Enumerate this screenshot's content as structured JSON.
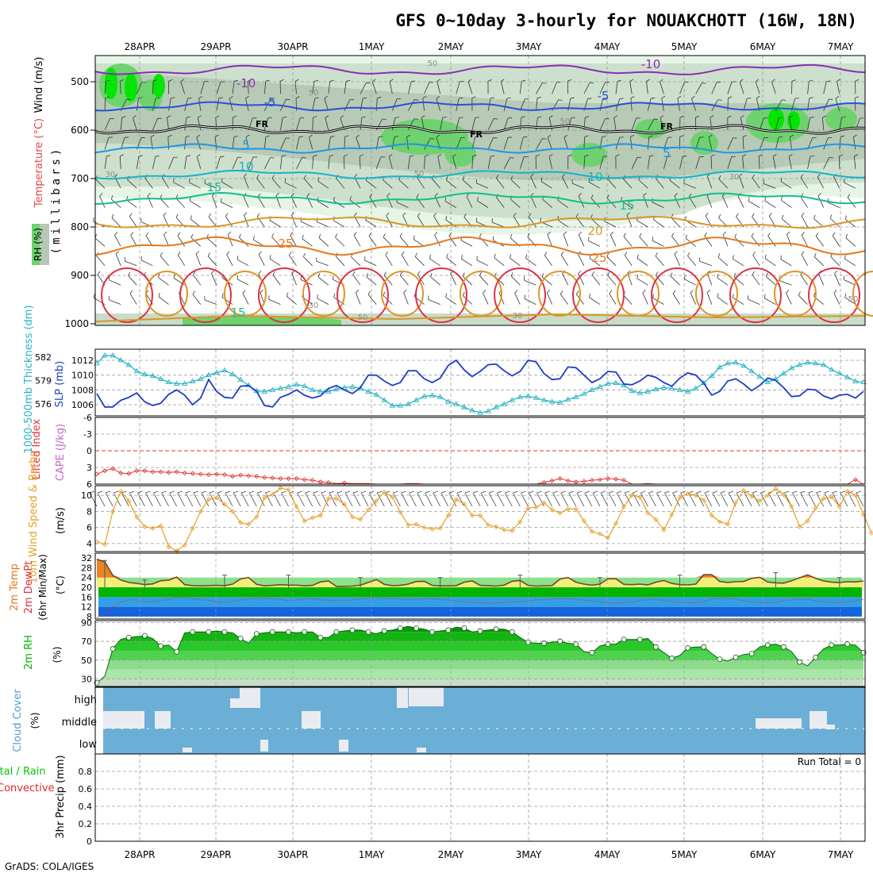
{
  "title": "GFS 0~10day 3-hourly for NOUAKCHOTT (16W, 18N)",
  "credit": "GrADS: COLA/IGES",
  "dates": [
    "28APR",
    "29APR",
    "30APR",
    "1MAY",
    "2MAY",
    "3MAY",
    "4MAY",
    "5MAY",
    "6MAY",
    "7MAY"
  ],
  "colors": {
    "rh_light": "#e6f5e6",
    "rh_mid": "#c8dcc8",
    "rh_gray": "#b4c8b4",
    "rh_green": "#6ed26e",
    "rh_bright": "#00e600",
    "temp_neg10": "#8c2db4",
    "temp_neg5": "#2850dc",
    "temp_freeze": "#000000",
    "temp_5": "#1e96e6",
    "temp_10": "#14b4c8",
    "temp_15": "#14be8c",
    "temp_20": "#dc9628",
    "temp_25": "#e6781e",
    "temp_30": "#dc3246",
    "slp": "#1e3cc8",
    "thick": "#28b4c8",
    "lifted": "#e63232",
    "cape": "#c864c8",
    "wind10": "#e6a028",
    "cloud": "#6baed6",
    "precip_total": "#00c800",
    "precip_conv": "#e62828"
  },
  "panel_upper": {
    "ylabel": "(millibars)",
    "legend_wind": "Wind (m/s)",
    "legend_temp": "Temperature (°C)",
    "legend_rh": "RH (%)",
    "yticks": [
      "500",
      "600",
      "700",
      "800",
      "900",
      "1000"
    ],
    "temp_labels": [
      {
        "text": "-10",
        "level": "-10"
      },
      {
        "text": "-10",
        "level": "-10"
      },
      {
        "text": "-5",
        "level": "-5"
      },
      {
        "text": "-5",
        "level": "-5"
      },
      {
        "text": "FR",
        "level": "0"
      },
      {
        "text": "FR",
        "level": "0"
      },
      {
        "text": "FR",
        "level": "0"
      },
      {
        "text": "5",
        "level": "5"
      },
      {
        "text": "5",
        "level": "5"
      },
      {
        "text": "10",
        "level": "10"
      },
      {
        "text": "10",
        "level": "10"
      },
      {
        "text": "15",
        "level": "15"
      },
      {
        "text": "15",
        "level": "15"
      },
      {
        "text": "20",
        "level": "20"
      },
      {
        "text": "25",
        "level": "25"
      },
      {
        "text": "25",
        "level": "25"
      },
      {
        "text": "15",
        "level": "15"
      }
    ],
    "rh_labels": [
      "50",
      "50",
      "50",
      "50",
      "30",
      "30",
      "30",
      "50",
      "30",
      "50"
    ]
  },
  "panel_slp": {
    "label_thick": "1000-500mb Thickness (dm)",
    "label_slp": "SLP (mb)",
    "yticks_left": [
      "582",
      "579",
      "576"
    ],
    "yticks_right": [
      "1012",
      "1010",
      "1008",
      "1006"
    ]
  },
  "panel_li": {
    "label_li": "Lifted Index",
    "label_cape": "CAPE (J/kg)",
    "yticks": [
      "-6",
      "-3",
      "0",
      "3",
      "6"
    ]
  },
  "panel_wind": {
    "label": "10m Wind Speed & Barbs",
    "unit": "(m/s)",
    "yticks": [
      "10",
      "8",
      "6",
      "4"
    ]
  },
  "panel_temp": {
    "label_a": "2m Temp",
    "label_b": "2m DewPt",
    "label_c": "(6hr Min/Max)",
    "unit": "(°C)",
    "yticks": [
      "32",
      "28",
      "24",
      "20",
      "16",
      "12",
      "8"
    ]
  },
  "panel_rh": {
    "label": "2m RH",
    "unit": "(%)",
    "yticks": [
      "90",
      "70",
      "50",
      "30"
    ]
  },
  "panel_cloud": {
    "label": "Cloud Cover",
    "unit": "(%)",
    "levels": [
      "high",
      "middle",
      "low"
    ]
  },
  "panel_precip": {
    "label_a": "Total / Rain",
    "label_b": "Convective",
    "label_c": "3hr Precip (mm)",
    "run_total": "Run Total = 0",
    "yticks": [
      "0.8",
      "0.6",
      "0.4",
      "0.2",
      "0"
    ]
  },
  "chart_data": [
    {
      "type": "line",
      "title": "1000-500mb Thickness (dm) / SLP (mb)",
      "series": [
        {
          "name": "SLP (mb)",
          "ylim": [
            1004.5,
            1013.5
          ],
          "values": [
            1007.5,
            1005.7,
            1005.7,
            1006.6,
            1007.0,
            1007.6,
            1006.4,
            1005.9,
            1006.2,
            1007.4,
            1008.0,
            1007.3,
            1006.0,
            1006.9,
            1009.4,
            1007.8,
            1007.0,
            1006.9,
            1008.5,
            1008.6,
            1007.8,
            1005.9,
            1005.7,
            1007.0,
            1007.4,
            1008.0,
            1007.3,
            1006.9,
            1007.2,
            1008.2,
            1008.6,
            1008.0,
            1007.5,
            1008.3,
            1010.0,
            1010.0,
            1009.2,
            1008.6,
            1009.0,
            1010.6,
            1010.6,
            1009.5,
            1009.0,
            1009.6,
            1011.3,
            1012.0,
            1010.7,
            1009.8,
            1010.5,
            1011.4,
            1011.5,
            1010.6,
            1009.9,
            1010.5,
            1012.0,
            1011.8,
            1010.2,
            1009.4,
            1009.5,
            1011.1,
            1011.0,
            1010.0,
            1009.0,
            1009.5,
            1010.5,
            1010.4,
            1008.8,
            1008.7,
            1009.2,
            1010.0,
            1009.7,
            1009.0,
            1008.5,
            1009.6,
            1010.3,
            1010.0,
            1008.9,
            1007.3,
            1007.8,
            1009.2,
            1009.5,
            1008.8,
            1007.9,
            1008.6,
            1009.6,
            1009.3,
            1008.3,
            1007.1,
            1007.2,
            1008.1,
            1008.0,
            1007.2,
            1006.8,
            1007.3,
            1007.4,
            1006.9,
            1007.8
          ]
        },
        {
          "name": "1000-500mb Thickness (dm)",
          "ylim": [
            574.5,
            583.0
          ],
          "values": [
            581.2,
            582.2,
            582.2,
            581.6,
            581.0,
            580.2,
            579.8,
            579.6,
            579.2,
            578.8,
            578.6,
            578.6,
            578.9,
            579.2,
            579.7,
            580.0,
            580.3,
            579.8,
            579.1,
            578.4,
            577.7,
            577.6,
            577.8,
            578.0,
            578.2,
            578.5,
            578.3,
            577.8,
            577.6,
            577.6,
            577.9,
            578.1,
            578.2,
            578.0,
            577.6,
            577.2,
            576.5,
            575.8,
            575.8,
            576.0,
            576.5,
            577.0,
            577.1,
            576.9,
            576.3,
            576.0,
            575.6,
            575.2,
            574.9,
            575.1,
            575.6,
            576.0,
            576.5,
            576.9,
            577.0,
            576.8,
            576.5,
            576.3,
            576.2,
            576.6,
            576.9,
            577.3,
            577.8,
            578.2,
            578.6,
            578.7,
            578.4,
            577.7,
            577.4,
            577.6,
            577.9,
            578.1,
            578.0,
            577.8,
            577.6,
            578.0,
            578.7,
            579.6,
            580.7,
            581.2,
            581.3,
            580.9,
            580.2,
            579.5,
            578.8,
            579.2,
            579.9,
            580.6,
            581.0,
            581.3,
            581.2,
            581.0,
            580.4,
            579.9,
            579.4,
            578.9,
            578.8
          ]
        }
      ]
    },
    {
      "type": "line",
      "title": "Lifted Index / CAPE (J/kg)",
      "series": [
        {
          "name": "Lifted Index",
          "ylim": [
            -6,
            6
          ],
          "values": [
            4.2,
            3.6,
            3.2,
            4.0,
            4.1,
            3.6,
            3.6,
            3.8,
            3.8,
            3.9,
            3.8,
            4.0,
            4.1,
            4.2,
            4.3,
            4.2,
            4.3,
            4.6,
            4.4,
            4.5,
            4.6,
            4.8,
            4.9,
            5.0,
            5.0,
            5.0,
            5.2,
            5.3,
            5.6,
            5.7,
            5.9,
            5.8,
            5.9,
            5.9,
            5.9,
            6.0,
            6.0,
            6.0,
            6.0,
            5.9,
            5.9,
            6.0,
            6.0,
            6.0,
            6.0,
            6.0,
            6.0,
            6.0,
            6.0,
            6.0,
            6.0,
            6.0,
            6.0,
            6.0,
            6.0,
            6.0,
            5.7,
            5.4,
            5.0,
            5.4,
            5.6,
            5.5,
            5.3,
            5.2,
            5.0,
            5.1,
            5.3,
            6.0,
            6.0,
            5.9,
            6.0,
            6.0,
            6.0,
            6.0,
            6.0,
            6.0,
            6.0,
            6.0,
            6.0,
            6.0,
            6.0,
            6.0,
            6.0,
            6.0,
            6.0,
            6.0,
            6.0,
            6.0,
            6.0,
            6.0,
            6.0,
            6.0,
            6.0,
            6.0,
            6.0,
            5.2,
            6.0
          ]
        }
      ]
    },
    {
      "type": "line",
      "title": "10m Wind Speed & Barbs (m/s)",
      "series": [
        {
          "name": "10m Wind Speed",
          "ylim": [
            3,
            11.2
          ],
          "values": [
            4.2,
            3.9,
            8.0,
            10.5,
            9.3,
            7.3,
            6.1,
            5.9,
            6.2,
            3.6,
            3.1,
            3.8,
            5.9,
            8.0,
            9.5,
            9.7,
            8.9,
            8.0,
            6.6,
            6.4,
            7.3,
            9.7,
            10.1,
            10.9,
            10.7,
            8.6,
            6.8,
            7.2,
            7.5,
            9.6,
            9.6,
            8.9,
            7.3,
            7.0,
            8.2,
            9.3,
            10.4,
            9.8,
            7.9,
            6.3,
            6.4,
            6.0,
            5.8,
            5.9,
            7.5,
            9.5,
            8.9,
            7.5,
            7.5,
            6.3,
            6.1,
            5.7,
            5.6,
            6.7,
            8.4,
            8.5,
            9.1,
            8.2,
            7.8,
            8.3,
            8.3,
            6.8,
            5.5,
            5.2,
            4.7,
            6.5,
            8.6,
            10.0,
            9.8,
            7.8,
            7.0,
            5.7,
            7.6,
            9.7,
            10.2,
            10.0,
            9.4,
            7.5,
            6.7,
            6.4,
            9.1,
            10.6,
            9.9,
            9.3,
            10.0,
            10.8,
            10.1,
            8.6,
            6.1,
            6.8,
            8.4,
            9.6,
            9.8,
            8.6,
            10.5,
            10.0,
            7.6,
            5.3
          ]
        }
      ]
    },
    {
      "type": "area",
      "title": "2m Temp / 2m DewPt (°C)",
      "series": [
        {
          "name": "2m Temp",
          "ylim": [
            7,
            34
          ],
          "values": [
            31.5,
            30.5,
            24.9,
            23.0,
            22.0,
            21.6,
            21.1,
            21.4,
            22.7,
            22.9,
            24.2,
            21.1,
            20.7,
            20.6,
            20.7,
            20.8,
            20.7,
            21.3,
            23.4,
            24.0,
            21.2,
            20.6,
            20.8,
            21.1,
            20.9,
            20.9,
            20.6,
            20.8,
            22.2,
            22.6,
            20.4,
            20.4,
            20.5,
            20.9,
            22.0,
            23.2,
            21.2,
            20.7,
            20.8,
            21.3,
            22.4,
            22.5,
            20.8,
            20.6,
            20.6,
            20.7,
            22.1,
            22.6,
            20.8,
            20.7,
            20.5,
            20.9,
            22.5,
            22.8,
            20.8,
            20.5,
            20.6,
            20.7,
            23.4,
            24.0,
            22.1,
            21.3,
            20.9,
            21.3,
            23.5,
            23.5,
            21.2,
            21.1,
            21.3,
            21.0,
            22.1,
            22.8,
            21.6,
            21.1,
            21.0,
            21.3,
            25.2,
            25.2,
            22.4,
            22.0,
            22.3,
            22.4,
            23.7,
            24.1,
            22.2,
            21.8,
            21.7,
            22.7,
            23.9,
            25.1,
            23.7,
            22.6,
            22.1,
            22.0,
            22.3,
            22.2,
            22.6
          ]
        },
        {
          "name": "2m DewPt",
          "ylim": [
            7,
            34
          ],
          "values": [
            7.5,
            9.0,
            12.0,
            14.0,
            15.0,
            14.8,
            14.0,
            14.2,
            14.6,
            15.0,
            15.8,
            16.0,
            15.4,
            15.0,
            14.6,
            14.2,
            13.8,
            14.2,
            14.8,
            15.2,
            15.6,
            15.6,
            15.4,
            15.0,
            14.6,
            14.8,
            15.2,
            15.4,
            15.0,
            14.6,
            14.5,
            14.6,
            14.9,
            15.2,
            15.6,
            15.8,
            15.6,
            15.4,
            15.2,
            15.0,
            15.1,
            15.3,
            15.4,
            15.1,
            14.8,
            14.4,
            14.0,
            13.8,
            13.6,
            13.4,
            13.5,
            13.8,
            14.0,
            14.2,
            14.5,
            14.8,
            15.0,
            15.2,
            15.4,
            15.3,
            15.1,
            14.8,
            14.4,
            14.0,
            13.6,
            13.4,
            13.6,
            14.0,
            14.6,
            15.0,
            15.0,
            14.6,
            14.2,
            13.8,
            13.6,
            13.6,
            14.2,
            15.0,
            15.6,
            15.6,
            15.2,
            14.6,
            14.0,
            13.8,
            13.6,
            13.8,
            14.4,
            15.0,
            15.2,
            15.0,
            14.6,
            14.2,
            13.8,
            13.6,
            14.0,
            14.6,
            15.0
          ]
        }
      ]
    },
    {
      "type": "area",
      "title": "2m RH (%)",
      "series": [
        {
          "name": "2m RH",
          "ylim": [
            22,
            92
          ],
          "values": [
            26,
            33,
            62,
            72,
            74,
            75,
            76,
            73,
            65,
            66,
            59,
            79,
            80,
            80,
            80,
            81,
            80,
            79,
            73,
            68,
            78,
            79,
            80,
            80,
            80,
            79,
            80,
            80,
            74,
            74,
            80,
            81,
            82,
            82,
            80,
            78,
            81,
            82,
            84,
            86,
            84,
            83,
            80,
            81,
            82,
            85,
            84,
            80,
            81,
            82,
            83,
            83,
            80,
            74,
            69,
            68,
            68,
            69,
            70,
            68,
            67,
            59,
            58,
            65,
            67,
            67,
            72,
            72,
            72,
            73,
            64,
            58,
            52,
            55,
            63,
            64,
            64,
            57,
            51,
            49,
            53,
            56,
            57,
            64,
            66,
            67,
            64,
            59,
            48,
            44,
            53,
            62,
            66,
            66,
            67,
            66,
            58
          ]
        }
      ]
    },
    {
      "type": "heatmap",
      "title": "Cloud Cover (%)",
      "categories": [
        "high",
        "middle",
        "low"
      ]
    },
    {
      "type": "bar",
      "title": "3hr Precip (mm)",
      "series": [
        {
          "name": "Total / Rain",
          "values": [
            0
          ]
        },
        {
          "name": "Convective",
          "values": [
            0
          ]
        }
      ],
      "ylim": [
        0,
        1
      ]
    }
  ]
}
